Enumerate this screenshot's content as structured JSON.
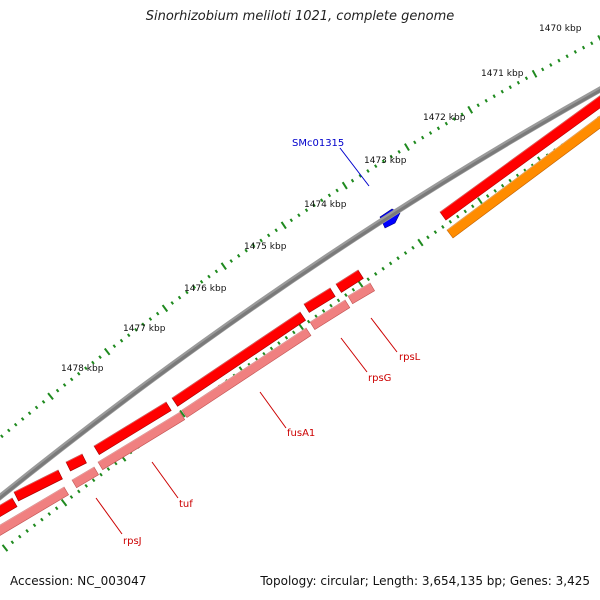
{
  "title": "Sinorhizobium meliloti 1021, complete genome",
  "accession_text": "Accession: NC_003047",
  "topology_text": "Topology: circular; Length: 3,654,135 bp; Genes: 3,425",
  "colors": {
    "backbone": "#7a7a7a",
    "tick": "#1f8a1f",
    "forward_dark": "#ff0000",
    "reverse_light": "#f08080",
    "orange": "#ff8c00",
    "highlight_blue": "#0000ff",
    "label_red": "#cc0000",
    "label_blue": "#0000cc"
  },
  "kbp_labels": [
    "1470 kbp",
    "1471 kbp",
    "1472 kbp",
    "1473 kbp",
    "1474 kbp",
    "1475 kbp",
    "1476 kbp",
    "1477 kbp",
    "1478 kbp"
  ],
  "gene_labels": [
    {
      "name": "SMc01315",
      "color": "blue"
    },
    {
      "name": "rpsL",
      "color": "red"
    },
    {
      "name": "rpsG",
      "color": "red"
    },
    {
      "name": "fusA1",
      "color": "red"
    },
    {
      "name": "tuf",
      "color": "red"
    },
    {
      "name": "rpsJ",
      "color": "red"
    }
  ]
}
